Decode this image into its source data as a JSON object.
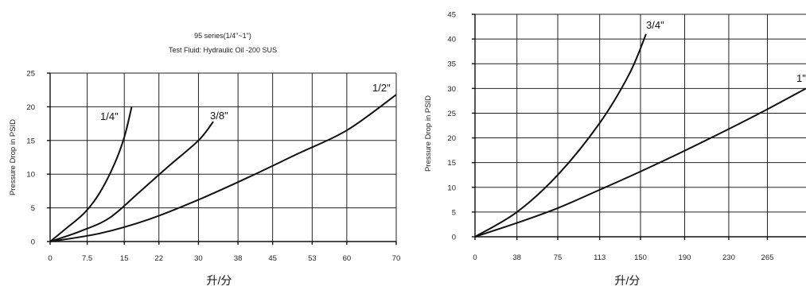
{
  "chart_data": [
    {
      "type": "line",
      "title": "95 series(1/4\"~1\")",
      "subtitle": "Test Fluid: Hydraulic Oil -200 SUS",
      "xlabel": "升/分",
      "ylabel": "Pressure Drop in PSID",
      "x_ticks": [
        "0",
        "7.5",
        "15",
        "22",
        "30",
        "38",
        "45",
        "53",
        "60",
        "70"
      ],
      "y_ticks": [
        "0",
        "5",
        "10",
        "15",
        "20",
        "25"
      ],
      "xlim": [
        0,
        70
      ],
      "ylim": [
        0,
        25
      ],
      "grid": true,
      "series": [
        {
          "name": "1/4\"",
          "x": [
            0,
            3,
            7,
            10,
            13,
            15,
            16.5
          ],
          "y": [
            0,
            1.8,
            4.3,
            7.2,
            11.5,
            15.5,
            20
          ]
        },
        {
          "name": "3/8\"",
          "x": [
            0,
            6,
            12,
            18,
            24,
            30,
            33
          ],
          "y": [
            0,
            1.5,
            3.5,
            7.3,
            11.2,
            15,
            17.8
          ]
        },
        {
          "name": "1/2\"",
          "x": [
            0,
            10,
            20,
            30,
            40,
            50,
            60,
            70
          ],
          "y": [
            0,
            1.2,
            3.3,
            6.2,
            9.5,
            13,
            16.5,
            21.8
          ]
        }
      ]
    },
    {
      "type": "line",
      "title": "",
      "xlabel": "升/分",
      "ylabel": "Pressure Drop in PSID",
      "x_ticks": [
        "0",
        "38",
        "75",
        "113",
        "150",
        "190",
        "230",
        "265"
      ],
      "y_ticks": [
        "0",
        "5",
        "10",
        "15",
        "20",
        "25",
        "30",
        "35",
        "40",
        "45"
      ],
      "xlim": [
        0,
        300
      ],
      "ylim": [
        0,
        45
      ],
      "grid": true,
      "series": [
        {
          "name": "3/4\"",
          "x": [
            0,
            38,
            75,
            113,
            140,
            155
          ],
          "y": [
            0,
            5,
            12.5,
            23,
            33,
            41
          ]
        },
        {
          "name": "1\"",
          "x": [
            0,
            38,
            75,
            113,
            150,
            190,
            230,
            265,
            300
          ],
          "y": [
            0,
            2.8,
            5.8,
            9.5,
            13.2,
            17.4,
            21.8,
            25.8,
            30
          ]
        }
      ]
    }
  ]
}
